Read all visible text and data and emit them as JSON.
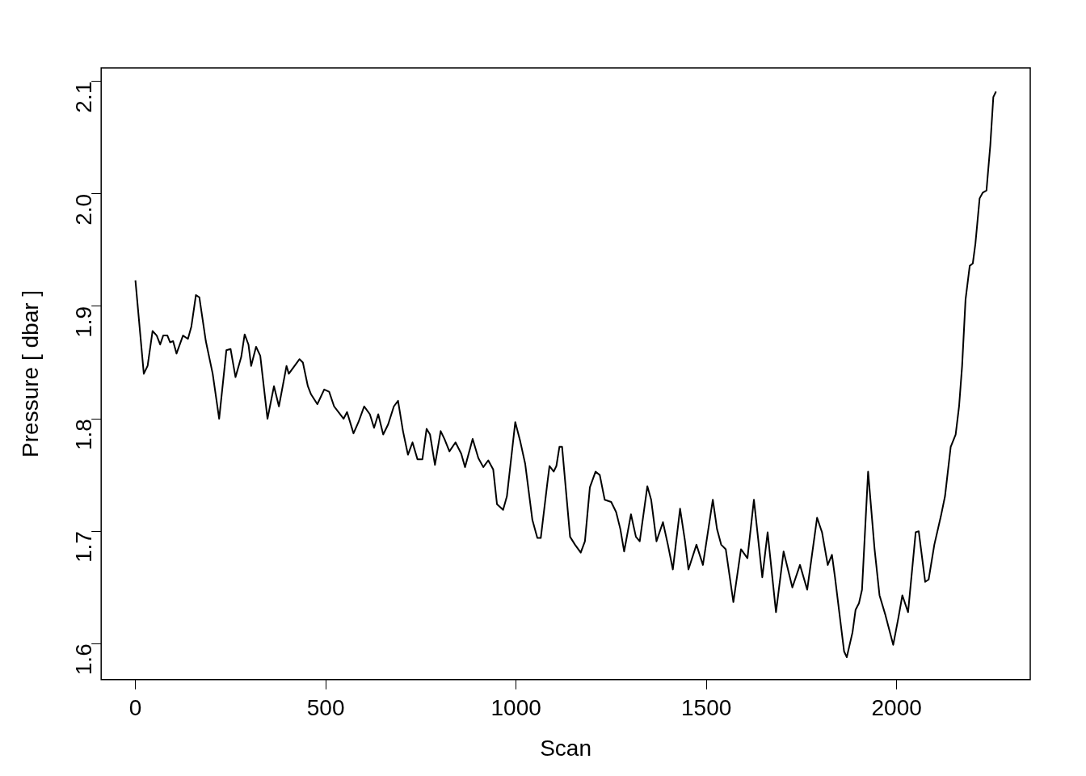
{
  "chart_data": {
    "type": "line",
    "xlabel": "Scan",
    "ylabel": "Pressure [ dbar ]",
    "xlim": [
      -90,
      2351
    ],
    "ylim": [
      1.568,
      2.112
    ],
    "xticks": [
      0,
      500,
      1000,
      1500,
      2000
    ],
    "yticks": [
      1.6,
      1.7,
      1.8,
      1.9,
      {
        "value": 2,
        "label": "2.0"
      },
      2.1
    ],
    "grid": false,
    "legend": false,
    "marker": "none",
    "line_style": "solid",
    "series": [
      {
        "color": "#000000",
        "x": [
          0,
          22,
          32,
          45,
          56,
          65,
          73,
          84,
          91,
          99,
          108,
          125,
          138,
          147,
          159,
          168,
          185,
          203,
          220,
          239,
          250,
          263,
          278,
          287,
          297,
          304,
          317,
          328,
          347,
          364,
          377,
          397,
          403,
          431,
          440,
          453,
          461,
          478,
          496,
          509,
          522,
          547,
          556,
          573,
          586,
          601,
          616,
          627,
          638,
          651,
          664,
          679,
          690,
          703,
          716,
          728,
          741,
          754,
          765,
          774,
          787,
          802,
          812,
          825,
          841,
          856,
          866,
          886,
          901,
          914,
          927,
          940,
          950,
          966,
          976,
          998,
          1011,
          1024,
          1043,
          1056,
          1065,
          1082,
          1088,
          1099,
          1106,
          1114,
          1121,
          1142,
          1155,
          1170,
          1181,
          1194,
          1209,
          1220,
          1233,
          1250,
          1263,
          1274,
          1284,
          1302,
          1315,
          1325,
          1345,
          1355,
          1369,
          1386,
          1399,
          1412,
          1431,
          1444,
          1453,
          1474,
          1491,
          1517,
          1528,
          1539,
          1551,
          1571,
          1591,
          1608,
          1625,
          1647,
          1661,
          1683,
          1703,
          1726,
          1746,
          1765,
          1791,
          1804,
          1819,
          1830,
          1838,
          1862,
          1869,
          1884,
          1892,
          1901,
          1909,
          1925,
          1942,
          1955,
          1970,
          1991,
          2004,
          2015,
          2030,
          2050,
          2058,
          2075,
          2084,
          2099,
          2116,
          2127,
          2142,
          2155,
          2164,
          2172,
          2181,
          2192,
          2200,
          2207,
          2218,
          2226,
          2236,
          2246,
          2254,
          2261
        ],
        "values": [
          1.923,
          1.84,
          1.847,
          1.878,
          1.874,
          1.866,
          1.874,
          1.874,
          1.868,
          1.869,
          1.858,
          1.874,
          1.871,
          1.882,
          1.91,
          1.908,
          1.869,
          1.84,
          1.8,
          1.861,
          1.862,
          1.837,
          1.855,
          1.875,
          1.866,
          1.847,
          1.864,
          1.856,
          1.8,
          1.829,
          1.811,
          1.847,
          1.84,
          1.853,
          1.85,
          1.829,
          1.822,
          1.813,
          1.826,
          1.824,
          1.811,
          1.8,
          1.806,
          1.787,
          1.797,
          1.811,
          1.804,
          1.792,
          1.804,
          1.786,
          1.795,
          1.811,
          1.816,
          1.789,
          1.768,
          1.779,
          1.764,
          1.764,
          1.791,
          1.786,
          1.759,
          1.789,
          1.782,
          1.771,
          1.779,
          1.769,
          1.757,
          1.782,
          1.765,
          1.757,
          1.763,
          1.755,
          1.724,
          1.719,
          1.731,
          1.797,
          1.78,
          1.76,
          1.71,
          1.694,
          1.694,
          1.742,
          1.758,
          1.753,
          1.758,
          1.775,
          1.775,
          1.695,
          1.688,
          1.681,
          1.691,
          1.739,
          1.753,
          1.75,
          1.728,
          1.726,
          1.717,
          1.702,
          1.682,
          1.715,
          1.695,
          1.691,
          1.74,
          1.728,
          1.691,
          1.708,
          1.688,
          1.666,
          1.72,
          1.691,
          1.666,
          1.688,
          1.67,
          1.728,
          1.702,
          1.688,
          1.684,
          1.637,
          1.684,
          1.676,
          1.728,
          1.659,
          1.699,
          1.628,
          1.682,
          1.65,
          1.67,
          1.648,
          1.712,
          1.699,
          1.67,
          1.679,
          1.659,
          1.593,
          1.588,
          1.61,
          1.63,
          1.636,
          1.648,
          1.753,
          1.684,
          1.643,
          1.626,
          1.599,
          1.622,
          1.643,
          1.628,
          1.699,
          1.7,
          1.655,
          1.657,
          1.688,
          1.713,
          1.731,
          1.775,
          1.786,
          1.811,
          1.847,
          1.906,
          1.936,
          1.938,
          1.956,
          1.996,
          2.001,
          2.003,
          2.043,
          2.086,
          2.091
        ]
      }
    ]
  }
}
